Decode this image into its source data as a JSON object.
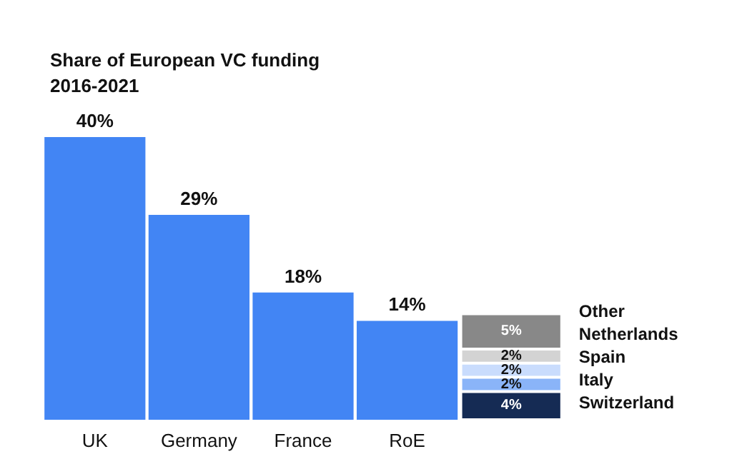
{
  "chart_data": {
    "type": "bar",
    "title": "Share of European VC funding\n2016-2021",
    "categories": [
      "UK",
      "Germany",
      "France",
      "RoE",
      null
    ],
    "stacked": true,
    "tick_labels": "x",
    "series": [
      {
        "color": "#4285f4",
        "values": [
          40,
          29,
          18,
          14,
          null
        ],
        "value_labels": [
          "40%",
          "29%",
          "18%",
          "14%",
          null
        ]
      },
      {
        "name": "Switzerland",
        "color": "#152b54",
        "values": [
          null,
          null,
          null,
          null,
          4
        ],
        "value_labels": [
          null,
          null,
          null,
          null,
          "4%"
        ]
      },
      {
        "name": "Italy",
        "color": "#8ab4f8",
        "values": [
          null,
          null,
          null,
          null,
          2
        ],
        "value_labels": [
          null,
          null,
          null,
          null,
          "2%"
        ]
      },
      {
        "name": "Spain",
        "color": "#c9dcfd",
        "values": [
          null,
          null,
          null,
          null,
          2
        ],
        "value_labels": [
          null,
          null,
          null,
          null,
          "2%"
        ]
      },
      {
        "name": "Netherlands",
        "color": "#d3d3d3",
        "values": [
          null,
          null,
          null,
          null,
          2
        ],
        "value_labels": [
          null,
          null,
          null,
          null,
          "2%"
        ]
      },
      {
        "name": "Other",
        "color": "#888888",
        "values": [
          null,
          null,
          null,
          null,
          5
        ],
        "value_labels": [
          null,
          null,
          null,
          null,
          "5%"
        ]
      }
    ]
  }
}
